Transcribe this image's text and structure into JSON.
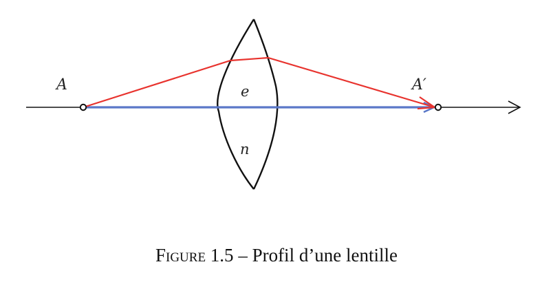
{
  "labels": {
    "object": "A",
    "image": "A′",
    "thickness": "e",
    "index": "n"
  },
  "caption": {
    "prefix": "Figure 1.5",
    "separator": " – ",
    "text": "Profil d’une lentille"
  },
  "colors": {
    "axis": "#111111",
    "lens": "#111111",
    "refracted_ray": "#e8332e",
    "axial_ray": "#5a78c8"
  }
}
